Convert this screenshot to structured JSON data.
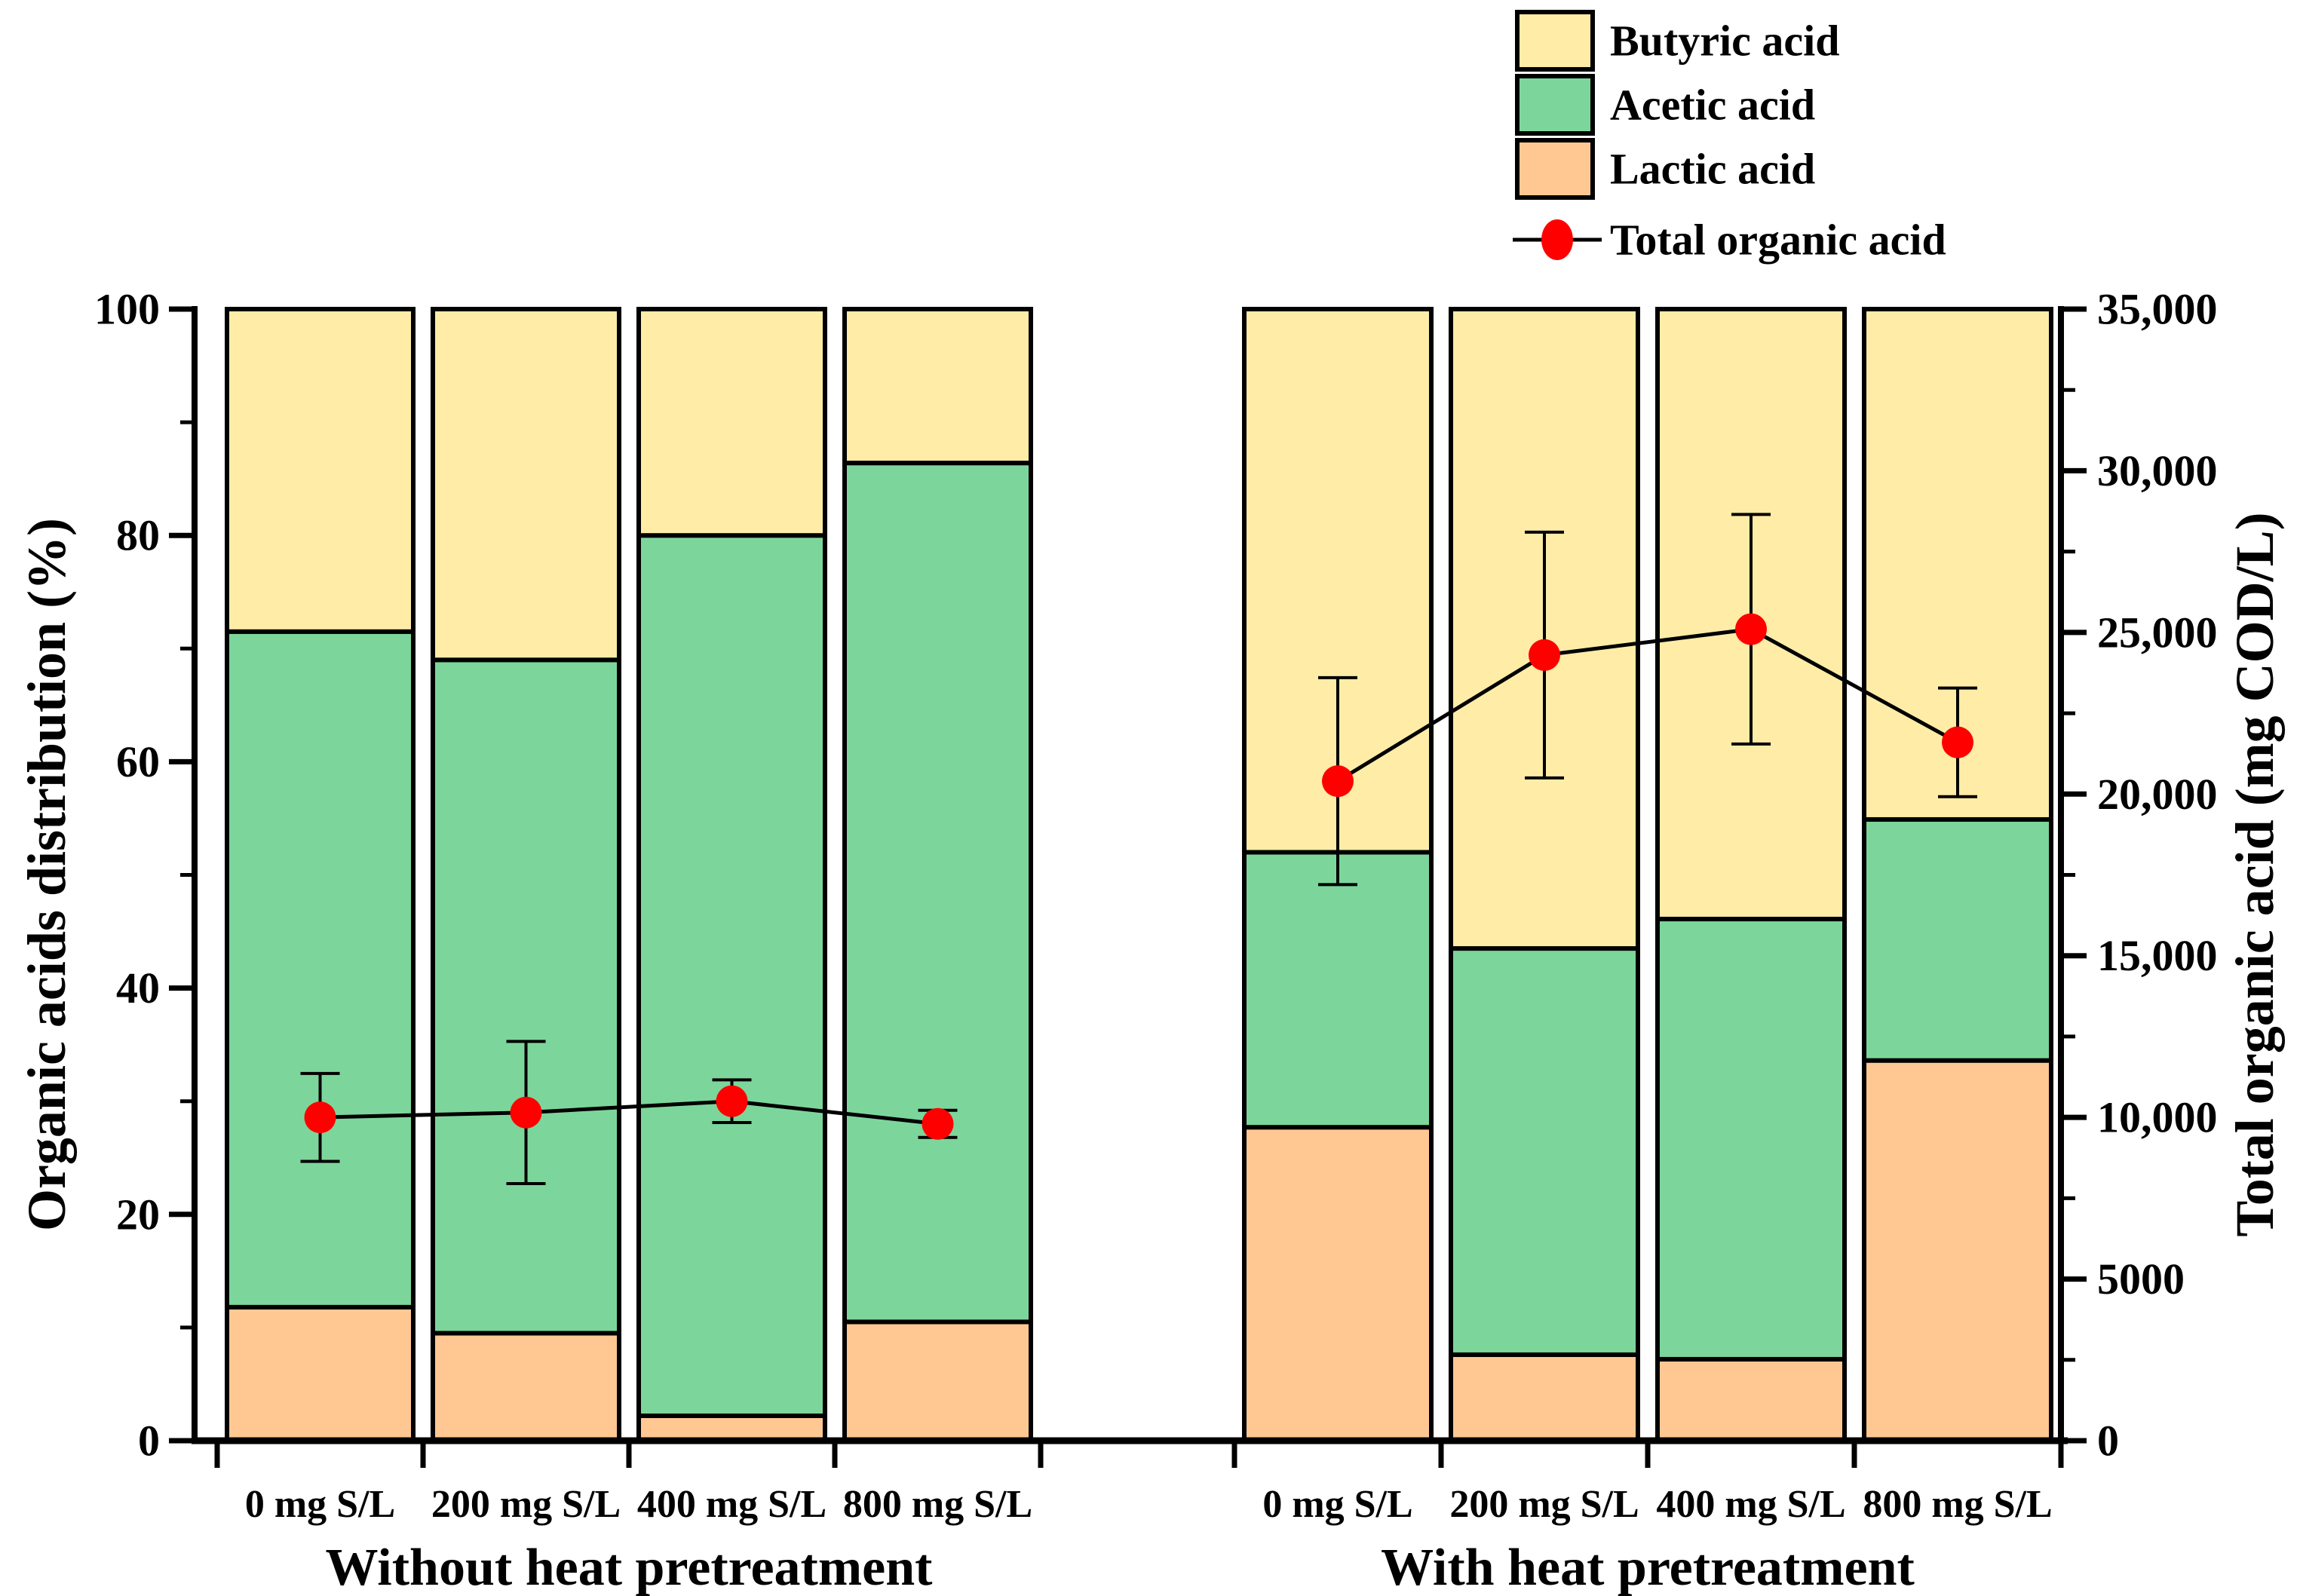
{
  "chart_data": {
    "type": "bar",
    "subtype": "stacked-percent-with-line-overlay",
    "title": "",
    "grid": false,
    "legend_position": "top-right",
    "categories": [
      "0 mg S/L",
      "200 mg S/L",
      "400 mg S/L",
      "800 mg S/L"
    ],
    "stack_order": [
      "lactic",
      "acetic",
      "butyric"
    ],
    "colors": {
      "lactic": "#FFC893",
      "acetic": "#7CD69B",
      "butyric": "#FEECA7",
      "total_line": "#000000",
      "total_marker": "#FF0000",
      "axis": "#000000"
    },
    "groups": [
      {
        "label": "Without heat pretreatment",
        "series": {
          "lactic": {
            "name": "Lactic acid",
            "values": [
              11.8,
              9.5,
              2.2,
              10.5
            ]
          },
          "acetic": {
            "name": "Acetic acid",
            "values": [
              59.7,
              59.5,
              77.8,
              75.9
            ]
          },
          "butyric": {
            "name": "Butyric acid",
            "values": [
              28.5,
              31.0,
              20.0,
              13.6
            ]
          }
        },
        "total_organic_acid": {
          "values": [
            10000,
            10150,
            10500,
            9800
          ],
          "errors": [
            1360,
            2200,
            660,
            420
          ]
        }
      },
      {
        "label": "With heat pretreatment",
        "series": {
          "lactic": {
            "name": "Lactic acid",
            "values": [
              27.7,
              7.6,
              7.2,
              33.6
            ]
          },
          "acetic": {
            "name": "Acetic acid",
            "values": [
              24.3,
              35.9,
              38.9,
              21.3
            ]
          },
          "butyric": {
            "name": "Butyric acid",
            "values": [
              48.0,
              56.5,
              53.9,
              45.1
            ]
          }
        },
        "total_organic_acid": {
          "values": [
            20400,
            24300,
            25100,
            21600
          ],
          "errors": [
            3200,
            3800,
            3550,
            1680
          ]
        }
      }
    ],
    "axes": {
      "left": {
        "title": "Organic acids distribution (%)",
        "min": 0,
        "max": 100,
        "major_ticks": [
          {
            "v": 0,
            "label": "0"
          },
          {
            "v": 20,
            "label": "20"
          },
          {
            "v": 40,
            "label": "40"
          },
          {
            "v": 60,
            "label": "60"
          },
          {
            "v": 80,
            "label": "80"
          },
          {
            "v": 100,
            "label": "100"
          }
        ],
        "minor_ticks": [
          10,
          30,
          50,
          70,
          90
        ]
      },
      "right": {
        "title": "Total organic acid (mg COD/L)",
        "min": 0,
        "max": 35000,
        "major_ticks": [
          {
            "v": 0,
            "label": "0"
          },
          {
            "v": 5000,
            "label": "5000"
          },
          {
            "v": 10000,
            "label": "10,000"
          },
          {
            "v": 15000,
            "label": "15,000"
          },
          {
            "v": 20000,
            "label": "20,000"
          },
          {
            "v": 25000,
            "label": "25,000"
          },
          {
            "v": 30000,
            "label": "30,000"
          },
          {
            "v": 35000,
            "label": "35,000"
          }
        ],
        "minor_ticks": [
          2500,
          7500,
          12500,
          17500,
          22500,
          27500,
          32500
        ]
      }
    },
    "legend": {
      "items": [
        {
          "label": "Butyric acid",
          "color_key": "butyric",
          "marker": "box"
        },
        {
          "label": "Acetic acid",
          "color_key": "acetic",
          "marker": "box"
        },
        {
          "label": "Lactic acid",
          "color_key": "lactic",
          "marker": "box"
        },
        {
          "label": "Total organic acid",
          "color_key": "total_marker",
          "marker": "line-circle"
        }
      ]
    }
  }
}
